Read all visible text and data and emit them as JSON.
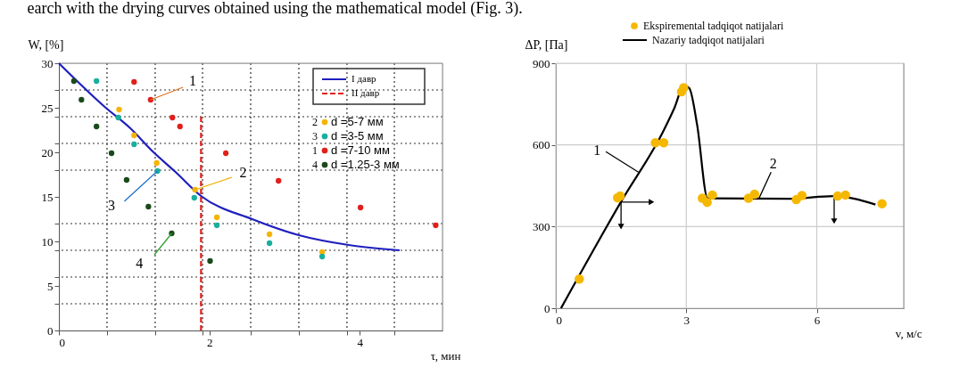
{
  "chart_data": [
    {
      "type": "scatter",
      "xlabel": "τ, мин",
      "ylabel": "W, [%]",
      "xlim": [
        0,
        5.1
      ],
      "ylim": [
        0,
        30
      ],
      "xticks": [
        0,
        {
          "value": 0.64,
          "label": null
        },
        {
          "value": 1.28,
          "label": null
        },
        {
          "value": 1.91,
          "label": null
        },
        2,
        {
          "value": 2.55,
          "label": null
        },
        {
          "value": 3.19,
          "label": null
        },
        {
          "value": 3.83,
          "label": null
        },
        4,
        {
          "value": 4.46,
          "label": null
        }
      ],
      "yticks": [
        0,
        {
          "value": 3,
          "label": null
        },
        5,
        {
          "value": 6,
          "label": null
        },
        {
          "value": 9,
          "label": null
        },
        10,
        {
          "value": 12,
          "label": null
        },
        15,
        {
          "value": 18,
          "label": null
        },
        20,
        {
          "value": 21,
          "label": null
        },
        {
          "value": 24,
          "label": null
        },
        25,
        {
          "value": 27,
          "label": null
        },
        30
      ],
      "grid": true,
      "legend": "top right",
      "series": [
        {
          "name": "I давр",
          "type": "line",
          "marker": "none",
          "line_style": "solid",
          "color": "#1f1fbf",
          "x": [
            0,
            0.61,
            0.95,
            1.26,
            1.55,
            1.89,
            2.57,
            3.19,
            3.85,
            4.53
          ],
          "values": [
            30,
            25.1,
            22.7,
            20.0,
            17.8,
            15.1,
            12.5,
            10.7,
            9.6,
            9.0
          ]
        },
        {
          "name": "II давр",
          "type": "line",
          "marker": "none",
          "line_style": "dashed",
          "color": "#e0201b",
          "x": [
            1.89,
            1.89
          ],
          "values": [
            0,
            24.3
          ]
        },
        {
          "name": "d =5-7 мм",
          "marker": "circle",
          "color": "#f5b400",
          "x": [
            0.8,
            1.0,
            1.3,
            1.81,
            2.1,
            2.8,
            3.5
          ],
          "values": [
            24.8,
            21.9,
            18.8,
            15.8,
            12.7,
            10.8,
            8.8
          ]
        },
        {
          "name": "d =3-5 мм",
          "marker": "circle",
          "color": "#1aae9f",
          "x": [
            0.5,
            0.79,
            1.0,
            1.31,
            1.8,
            2.1,
            2.8,
            3.5
          ],
          "values": [
            28.0,
            23.9,
            20.9,
            17.9,
            14.9,
            11.8,
            9.8,
            8.3
          ]
        },
        {
          "name": "d =7-10 мм",
          "marker": "circle",
          "color": "#e0201b",
          "x": [
            1.0,
            1.22,
            1.51,
            1.61,
            2.22,
            2.92,
            4.01,
            5.01
          ],
          "values": [
            27.9,
            25.9,
            23.9,
            22.9,
            19.9,
            16.8,
            13.8,
            11.8
          ]
        },
        {
          "name": "d =1.25-3 мм",
          "marker": "circle",
          "color": "#1a4a1a",
          "x": [
            0.2,
            0.3,
            0.5,
            0.7,
            0.9,
            1.19,
            1.5,
            2.01
          ],
          "values": [
            28.0,
            25.9,
            22.9,
            19.9,
            16.9,
            13.9,
            10.9,
            7.8
          ]
        }
      ],
      "annotations": [
        "earch with the drying curves obtained using the mathematical model (Fig. 3).",
        {
          "text": "1",
          "x": 1.22,
          "y": 25.9
        },
        {
          "text": "2",
          "x": 1.81,
          "y": 15.8
        },
        {
          "text": "3",
          "x": 1.31,
          "y": 17.9
        },
        {
          "text": "4",
          "x": 1.5,
          "y": 10.9
        },
        "2",
        "3",
        "1",
        "4"
      ]
    },
    {
      "type": "scatter",
      "xlabel": "v, м/с",
      "ylabel": "ΔP, [Па]",
      "xlim": [
        0,
        8
      ],
      "ylim": [
        0,
        900
      ],
      "xticks": [
        0,
        3,
        6
      ],
      "yticks": [
        0,
        300,
        600,
        900
      ],
      "grid": true,
      "legend": "top",
      "series": [
        {
          "name": "Ekspiremental tadqiqot natijalari",
          "marker": "circle",
          "color": "#f5b800",
          "x": [
            0.54,
            1.42,
            1.48,
            2.29,
            2.48,
            2.89,
            2.94,
            3.37,
            3.48,
            3.6,
            4.43,
            4.57,
            5.53,
            5.66,
            6.48,
            6.66,
            7.5
          ],
          "values": [
            107,
            406,
            412,
            608,
            608,
            795,
            810,
            404,
            389,
            416,
            404,
            419,
            399,
            414,
            412,
            416,
            384
          ]
        },
        {
          "name": "Nazariy tadqiqot natijalari",
          "type": "line",
          "marker": "none",
          "line_style": "solid",
          "color": "#000000",
          "x": [
            0.12,
            1.51,
            2.48,
            2.72,
            2.95,
            3.07,
            3.25,
            3.49,
            5.36,
            6.39,
            7.35
          ],
          "values": [
            0,
            394,
            653,
            733,
            818,
            808,
            673,
            404,
            402,
            412,
            381
          ]
        }
      ],
      "annotations": [
        {
          "text": "1",
          "x": 1.9,
          "y": 500
        },
        {
          "text": "2",
          "x": 4.67,
          "y": 403
        }
      ]
    }
  ]
}
